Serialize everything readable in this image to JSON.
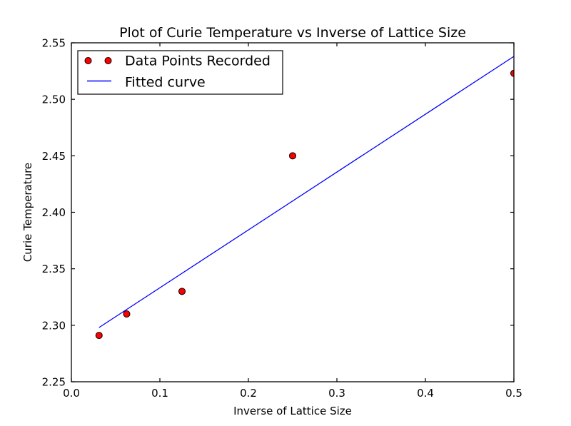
{
  "chart_data": {
    "type": "scatter",
    "title": "Plot of Curie Temperature vs Inverse of Lattice Size",
    "xlabel": "Inverse of Lattice Size",
    "ylabel": "Curie Temperature",
    "xlim": [
      0.0,
      0.5
    ],
    "ylim": [
      2.25,
      2.55
    ],
    "xticks": [
      "0.0",
      "0.1",
      "0.2",
      "0.3",
      "0.4",
      "0.5"
    ],
    "yticks": [
      "2.25",
      "2.30",
      "2.35",
      "2.40",
      "2.45",
      "2.50",
      "2.55"
    ],
    "grid": false,
    "background_color": "#ffffff",
    "axis_color": "#000000",
    "series": [
      {
        "name": "Data Points Recorded",
        "type": "scatter",
        "marker": "circle",
        "color": "#ff0000",
        "marker_edge_color": "#000000",
        "x": [
          0.03125,
          0.0625,
          0.125,
          0.25,
          0.5
        ],
        "y": [
          2.291,
          2.31,
          2.33,
          2.45,
          2.523
        ]
      },
      {
        "name": "Fitted curve",
        "type": "line",
        "color": "#0000ff",
        "x": [
          0.03125,
          0.5
        ],
        "y": [
          2.298,
          2.538
        ]
      }
    ],
    "legend": {
      "position": "upper left",
      "entries": [
        {
          "label": "Data Points Recorded",
          "glyph": "marker",
          "color": "#ff0000"
        },
        {
          "label": "Fitted curve",
          "glyph": "line",
          "color": "#0000ff"
        }
      ]
    }
  }
}
